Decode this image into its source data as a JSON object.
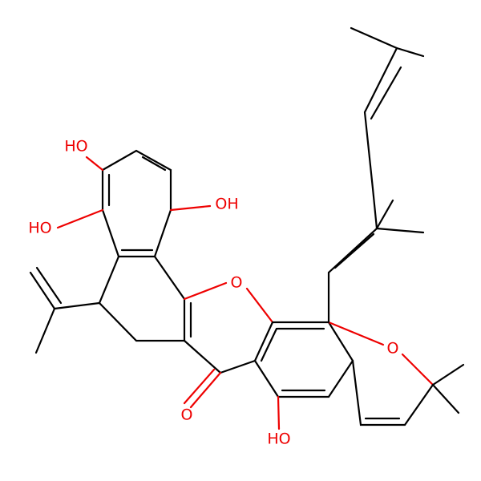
{
  "atoms": [
    {
      "label": "HO"
    },
    {
      "label": "HO"
    },
    {
      "label": "OH"
    },
    {
      "label": "O"
    },
    {
      "label": "O"
    },
    {
      "label": "O"
    },
    {
      "label": "HO"
    }
  ]
}
